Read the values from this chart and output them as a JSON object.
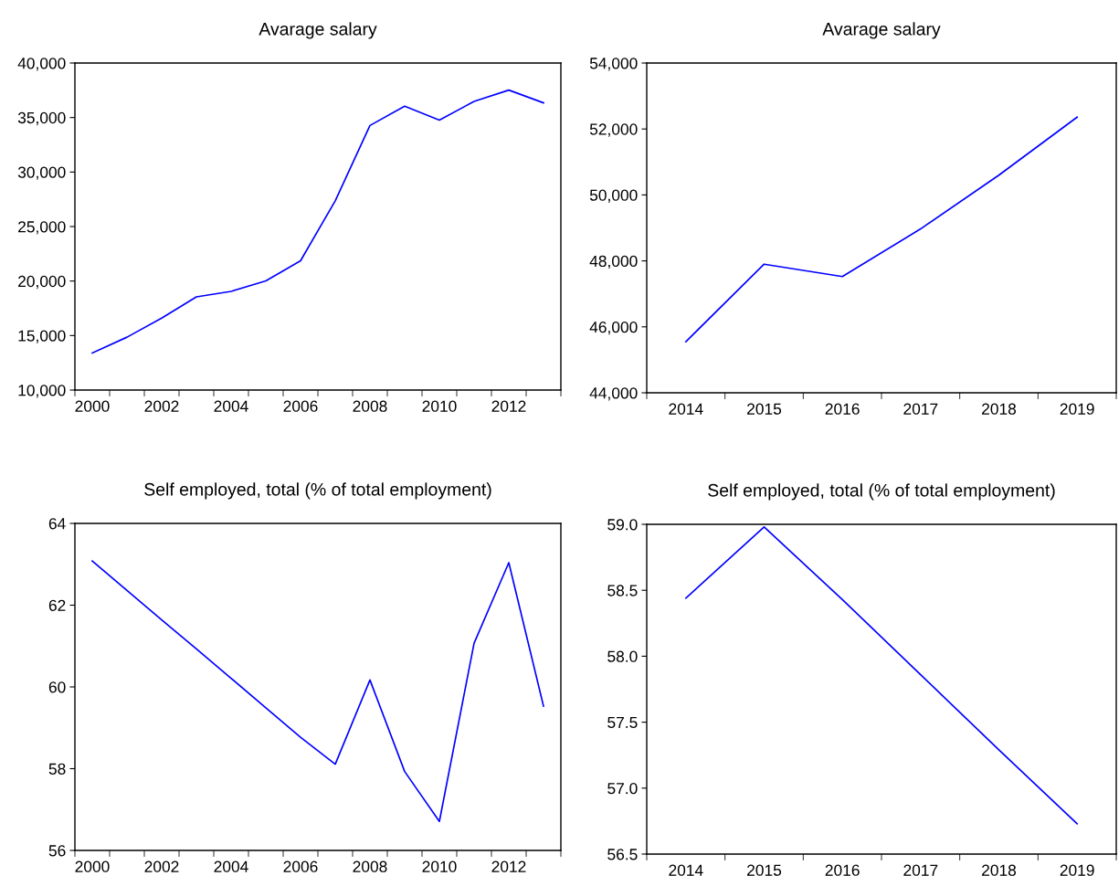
{
  "chart_data": [
    {
      "type": "line",
      "title": "Avarage salary",
      "categories": [
        "2000",
        null,
        "2002",
        null,
        "2004",
        null,
        "2006",
        null,
        "2008",
        null,
        "2010",
        null,
        "2012",
        null
      ],
      "series": [
        {
          "color": "#0000ff",
          "values": [
            13400,
            14850,
            16600,
            18550,
            19050,
            20020,
            21860,
            27360,
            34270,
            36040,
            34770,
            36480,
            37520,
            36350
          ]
        }
      ],
      "ylim": [
        10000,
        40000
      ],
      "yticks": [
        {
          "value": 10000,
          "label": "10,000"
        },
        {
          "value": 15000,
          "label": "15,000"
        },
        {
          "value": 20000,
          "label": "20,000"
        },
        {
          "value": 25000,
          "label": "25,000"
        },
        {
          "value": 30000,
          "label": "30,000"
        },
        {
          "value": 35000,
          "label": "35,000"
        },
        {
          "value": 40000,
          "label": "40,000"
        }
      ],
      "grid": false
    },
    {
      "type": "line",
      "title": "Avarage salary",
      "categories": [
        "2014",
        "2015",
        "2016",
        "2017",
        "2018",
        "2019"
      ],
      "series": [
        {
          "color": "#0000ff",
          "values": [
            45550,
            47900,
            47525,
            48970,
            50600,
            52360
          ]
        }
      ],
      "ylim": [
        44000,
        54000
      ],
      "yticks": [
        {
          "value": 44000,
          "label": "44,000"
        },
        {
          "value": 46000,
          "label": "46,000"
        },
        {
          "value": 48000,
          "label": "48,000"
        },
        {
          "value": 50000,
          "label": "50,000"
        },
        {
          "value": 52000,
          "label": "52,000"
        },
        {
          "value": 54000,
          "label": "54,000"
        }
      ],
      "grid": false
    },
    {
      "type": "line",
      "title": "Self employed, total (% of total employment)",
      "categories": [
        "2000",
        null,
        "2002",
        null,
        "2004",
        null,
        "2006",
        null,
        "2008",
        null,
        "2010",
        null,
        "2012",
        null
      ],
      "series": [
        {
          "color": "#0000ff",
          "values": [
            63.08,
            62.36,
            61.64,
            60.93,
            60.21,
            59.49,
            58.77,
            58.11,
            60.17,
            57.93,
            56.71,
            61.07,
            63.04,
            59.53
          ]
        }
      ],
      "ylim": [
        56,
        64
      ],
      "yticks": [
        56,
        58,
        60,
        62,
        64
      ],
      "grid": false
    },
    {
      "type": "line",
      "title": "Self employed, total (% of total employment)",
      "categories": [
        "2014",
        "2015",
        "2016",
        "2017",
        "2018",
        "2019"
      ],
      "series": [
        {
          "color": "#0000ff",
          "values": [
            58.44,
            58.98,
            58.43,
            57.86,
            57.29,
            56.73
          ]
        }
      ],
      "ylim": [
        56.5,
        59.0
      ],
      "yticks": [
        {
          "value": 56.5,
          "label": "56.5"
        },
        {
          "value": 57.0,
          "label": "57.0"
        },
        {
          "value": 57.5,
          "label": "57.5"
        },
        {
          "value": 58.0,
          "label": "58.0"
        },
        {
          "value": 58.5,
          "label": "58.5"
        },
        {
          "value": 59.0,
          "label": "59.0"
        }
      ],
      "grid": false
    }
  ]
}
